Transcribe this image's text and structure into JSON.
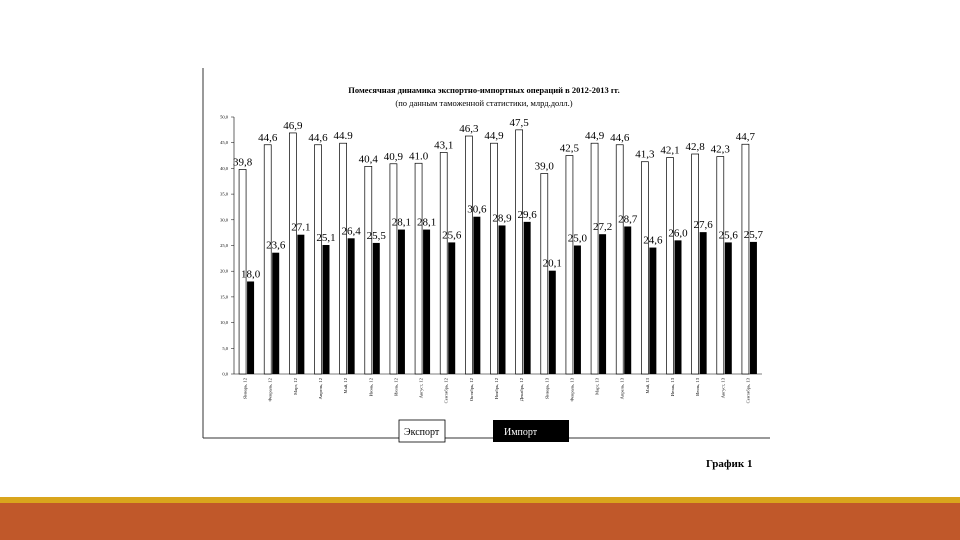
{
  "caption": "График 1",
  "chart_data": {
    "type": "bar",
    "title": "Помесячная динамика экспортно-импортных операций в 2012-2013 гг.",
    "subtitle": "(по данным таможенной статистики, млрд.долл.)",
    "ylim": [
      0,
      50
    ],
    "yticks": [
      "0,0",
      "5,0",
      "10,0",
      "15,0",
      "20,0",
      "25,0",
      "30,0",
      "35,0",
      "40,0",
      "45,0",
      "50,0"
    ],
    "grid": false,
    "legend_position": "bottom",
    "categories": [
      "Январь, 12",
      "Февраль, 12",
      "Март, 12",
      "Апрель, 12",
      "Май, 12",
      "Июнь, 12",
      "Июль, 12",
      "Август, 12",
      "Сентябрь, 12",
      "Октябрь, 12",
      "Ноябрь, 12",
      "Декабрь, 12",
      "Январь, 13",
      "Февраль, 13",
      "Март, 13",
      "Апрель, 13",
      "Май, 13",
      "Июнь, 13",
      "Июль, 13",
      "Август, 13",
      "Сентябрь, 13"
    ],
    "series": [
      {
        "name": "Экспорт",
        "color": "#ffffff",
        "values": [
          39.8,
          44.6,
          46.9,
          44.6,
          44.9,
          40.4,
          40.9,
          41.0,
          43.1,
          46.3,
          44.9,
          47.5,
          39.0,
          42.5,
          44.9,
          44.6,
          41.3,
          42.1,
          42.8,
          42.3,
          44.7
        ],
        "labels": [
          "39,8",
          "44,6",
          "46,9",
          "44,6",
          "44.9",
          "40,4",
          "40,9",
          "41.0",
          "43,1",
          "46,3",
          "44,9",
          "47,5",
          "39,0",
          "42,5",
          "44,9",
          "44,6",
          "41,3",
          "42,1",
          "42,8",
          "42,3",
          "44,7"
        ]
      },
      {
        "name": "Импорт",
        "color": "#000000",
        "values": [
          18.0,
          23.6,
          27.1,
          25.1,
          26.4,
          25.5,
          28.1,
          28.1,
          25.6,
          30.6,
          28.9,
          29.6,
          20.1,
          25.0,
          27.2,
          28.7,
          24.6,
          26.0,
          27.6,
          25.6,
          25.7
        ],
        "labels": [
          "18,0",
          "23,6",
          "27.1",
          "25,1",
          "26,4",
          "25,5",
          "28,1",
          "28,1",
          "25,6",
          "30,6",
          "28,9",
          "29,6",
          "20,1",
          "25,0",
          "27,2",
          "28,7",
          "24,6",
          "26,0",
          "27,6",
          "25,6",
          "25,7"
        ]
      }
    ]
  }
}
